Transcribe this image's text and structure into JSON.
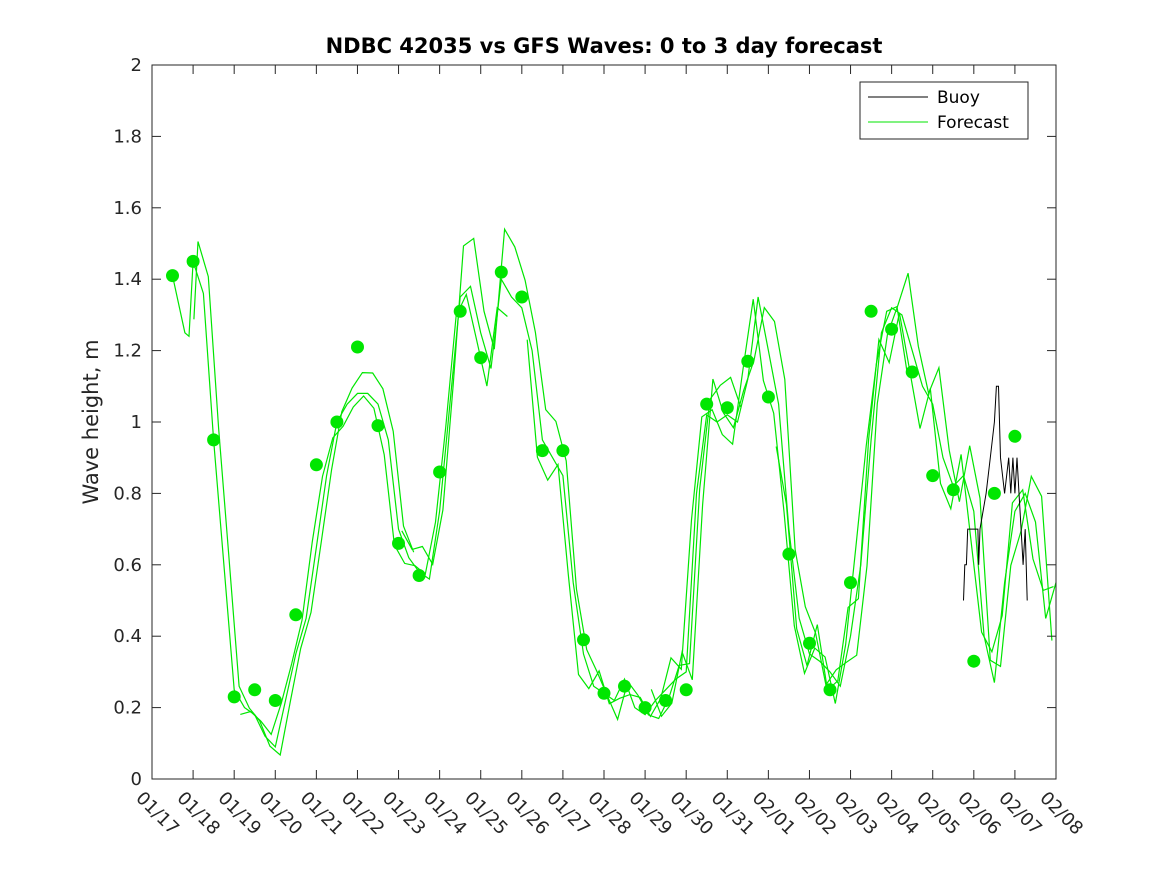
{
  "chart_data": {
    "type": "line",
    "title": "NDBC 42035 vs GFS Waves: 0 to 3 day forecast",
    "xlabel": "",
    "ylabel": "Wave height, m",
    "ylim": [
      0,
      2
    ],
    "xlim": [
      0,
      22
    ],
    "x_tick_labels": [
      "01/17",
      "01/18",
      "01/19",
      "01/20",
      "01/21",
      "01/22",
      "01/23",
      "01/24",
      "01/25",
      "01/26",
      "01/27",
      "01/28",
      "01/29",
      "01/30",
      "01/31",
      "02/01",
      "02/02",
      "02/03",
      "02/04",
      "02/05",
      "02/06",
      "02/07",
      "02/08"
    ],
    "y_ticks": [
      0,
      0.2,
      0.4,
      0.6,
      0.8,
      1,
      1.2,
      1.4,
      1.6,
      1.8,
      2
    ],
    "y_tick_labels": [
      "0",
      "0.2",
      "0.4",
      "0.6",
      "0.8",
      "1",
      "1.2",
      "1.4",
      "1.6",
      "1.8",
      "2"
    ],
    "legend": {
      "position": "top-right",
      "entries": [
        "Buoy",
        "Forecast"
      ]
    },
    "colors": {
      "buoy": "#000000",
      "forecast": "#00e600",
      "axis": "#262626"
    },
    "forecast_base": [
      [
        0.5,
        1.41
      ],
      [
        0.8,
        1.25
      ],
      [
        0.9,
        1.24
      ],
      [
        1.0,
        1.45
      ],
      [
        1.25,
        1.36
      ],
      [
        1.5,
        0.95
      ],
      [
        1.75,
        0.6
      ],
      [
        2.0,
        0.25
      ],
      [
        2.25,
        0.2
      ],
      [
        2.5,
        0.18
      ],
      [
        2.75,
        0.12
      ],
      [
        3.0,
        0.09
      ],
      [
        3.25,
        0.22
      ],
      [
        3.5,
        0.35
      ],
      [
        3.75,
        0.45
      ],
      [
        4.0,
        0.65
      ],
      [
        4.25,
        0.85
      ],
      [
        4.5,
        1.0
      ],
      [
        4.75,
        1.05
      ],
      [
        5.0,
        1.08
      ],
      [
        5.25,
        1.08
      ],
      [
        5.5,
        1.05
      ],
      [
        5.75,
        0.95
      ],
      [
        6.0,
        0.7
      ],
      [
        6.25,
        0.62
      ],
      [
        6.5,
        0.58
      ],
      [
        6.75,
        0.56
      ],
      [
        7.0,
        0.75
      ],
      [
        7.25,
        1.05
      ],
      [
        7.5,
        1.35
      ],
      [
        7.75,
        1.38
      ],
      [
        8.0,
        1.25
      ],
      [
        8.25,
        1.15
      ],
      [
        8.5,
        1.4
      ],
      [
        8.75,
        1.35
      ],
      [
        9.0,
        1.32
      ],
      [
        9.25,
        1.2
      ],
      [
        9.5,
        0.95
      ],
      [
        9.75,
        0.9
      ],
      [
        10.0,
        0.85
      ],
      [
        10.25,
        0.55
      ],
      [
        10.5,
        0.35
      ],
      [
        10.75,
        0.26
      ],
      [
        11.0,
        0.24
      ],
      [
        11.25,
        0.22
      ],
      [
        11.5,
        0.28
      ],
      [
        11.75,
        0.2
      ],
      [
        12.0,
        0.18
      ],
      [
        12.25,
        0.22
      ],
      [
        12.5,
        0.25
      ],
      [
        12.75,
        0.28
      ],
      [
        13.0,
        0.3
      ],
      [
        13.25,
        0.8
      ],
      [
        13.5,
        1.02
      ],
      [
        13.75,
        1.0
      ],
      [
        14.0,
        1.02
      ],
      [
        14.25,
        1.0
      ],
      [
        14.5,
        1.12
      ],
      [
        14.75,
        1.35
      ],
      [
        15.0,
        1.2
      ],
      [
        15.25,
        1.05
      ],
      [
        15.5,
        0.7
      ],
      [
        15.75,
        0.45
      ],
      [
        16.0,
        0.35
      ],
      [
        16.25,
        0.33
      ],
      [
        16.5,
        0.3
      ],
      [
        16.75,
        0.26
      ],
      [
        17.0,
        0.4
      ],
      [
        17.25,
        0.6
      ],
      [
        17.5,
        0.95
      ],
      [
        17.75,
        1.25
      ],
      [
        18.0,
        1.32
      ],
      [
        18.25,
        1.3
      ],
      [
        18.5,
        1.2
      ],
      [
        18.75,
        1.1
      ],
      [
        19.0,
        1.05
      ],
      [
        19.25,
        0.9
      ],
      [
        19.5,
        0.82
      ],
      [
        19.75,
        0.85
      ],
      [
        20.0,
        0.75
      ],
      [
        20.25,
        0.4
      ],
      [
        20.5,
        0.27
      ],
      [
        20.75,
        0.55
      ],
      [
        21.0,
        0.75
      ],
      [
        21.25,
        0.8
      ],
      [
        21.5,
        0.72
      ],
      [
        21.75,
        0.45
      ],
      [
        22.0,
        0.55
      ]
    ],
    "forecast_variants": [
      {
        "dx": 0.0,
        "scale": 1.0,
        "dy": 0.0,
        "x_start": 0.5,
        "x_end": 22.0
      },
      {
        "dx": 0.12,
        "scale": 1.06,
        "dy": -0.02,
        "x_start": 1.0,
        "x_end": 6.5
      },
      {
        "dx": -0.1,
        "scale": 0.95,
        "dy": 0.02,
        "x_start": 2.0,
        "x_end": 8.8
      },
      {
        "dx": 0.08,
        "scale": 1.1,
        "dy": -0.03,
        "x_start": 6.0,
        "x_end": 14.5
      },
      {
        "dx": -0.12,
        "scale": 0.97,
        "dy": 0.01,
        "x_start": 9.0,
        "x_end": 18.5
      },
      {
        "dx": 0.15,
        "scale": 1.04,
        "dy": -0.01,
        "x_start": 12.0,
        "x_end": 22.0
      },
      {
        "dx": -0.06,
        "scale": 0.92,
        "dy": 0.04,
        "x_start": 15.0,
        "x_end": 22.0
      }
    ],
    "forecast_points": [
      [
        0.5,
        1.41
      ],
      [
        1.0,
        1.45
      ],
      [
        1.5,
        0.95
      ],
      [
        2.0,
        0.23
      ],
      [
        2.5,
        0.25
      ],
      [
        3.0,
        0.22
      ],
      [
        3.5,
        0.46
      ],
      [
        4.0,
        0.88
      ],
      [
        4.5,
        1.0
      ],
      [
        5.0,
        1.21
      ],
      [
        5.5,
        0.99
      ],
      [
        6.0,
        0.66
      ],
      [
        6.5,
        0.57
      ],
      [
        7.0,
        0.86
      ],
      [
        7.5,
        1.31
      ],
      [
        8.0,
        1.18
      ],
      [
        8.5,
        1.42
      ],
      [
        9.0,
        1.35
      ],
      [
        9.5,
        0.92
      ],
      [
        10.0,
        0.92
      ],
      [
        10.5,
        0.39
      ],
      [
        11.0,
        0.24
      ],
      [
        11.5,
        0.26
      ],
      [
        12.0,
        0.2
      ],
      [
        12.5,
        0.22
      ],
      [
        13.0,
        0.25
      ],
      [
        13.5,
        1.05
      ],
      [
        14.0,
        1.04
      ],
      [
        14.5,
        1.17
      ],
      [
        15.0,
        1.07
      ],
      [
        15.5,
        0.63
      ],
      [
        16.0,
        0.38
      ],
      [
        16.5,
        0.25
      ],
      [
        17.0,
        0.55
      ],
      [
        17.5,
        1.31
      ],
      [
        18.0,
        1.26
      ],
      [
        18.5,
        1.14
      ],
      [
        19.0,
        0.85
      ],
      [
        19.5,
        0.81
      ],
      [
        20.0,
        0.33
      ],
      [
        20.5,
        0.8
      ],
      [
        21.0,
        0.96
      ]
    ],
    "buoy": [
      [
        19.75,
        0.5
      ],
      [
        19.78,
        0.6
      ],
      [
        19.82,
        0.6
      ],
      [
        19.85,
        0.7
      ],
      [
        20.1,
        0.7
      ],
      [
        20.12,
        0.6
      ],
      [
        20.15,
        0.7
      ],
      [
        20.3,
        0.8
      ],
      [
        20.4,
        0.9
      ],
      [
        20.5,
        1.0
      ],
      [
        20.55,
        1.1
      ],
      [
        20.6,
        1.1
      ],
      [
        20.65,
        0.9
      ],
      [
        20.75,
        0.8
      ],
      [
        20.85,
        0.9
      ],
      [
        20.9,
        0.8
      ],
      [
        20.95,
        0.9
      ],
      [
        21.0,
        0.8
      ],
      [
        21.05,
        0.9
      ],
      [
        21.1,
        0.8
      ],
      [
        21.15,
        0.7
      ],
      [
        21.2,
        0.6
      ],
      [
        21.25,
        0.7
      ],
      [
        21.3,
        0.5
      ]
    ]
  }
}
